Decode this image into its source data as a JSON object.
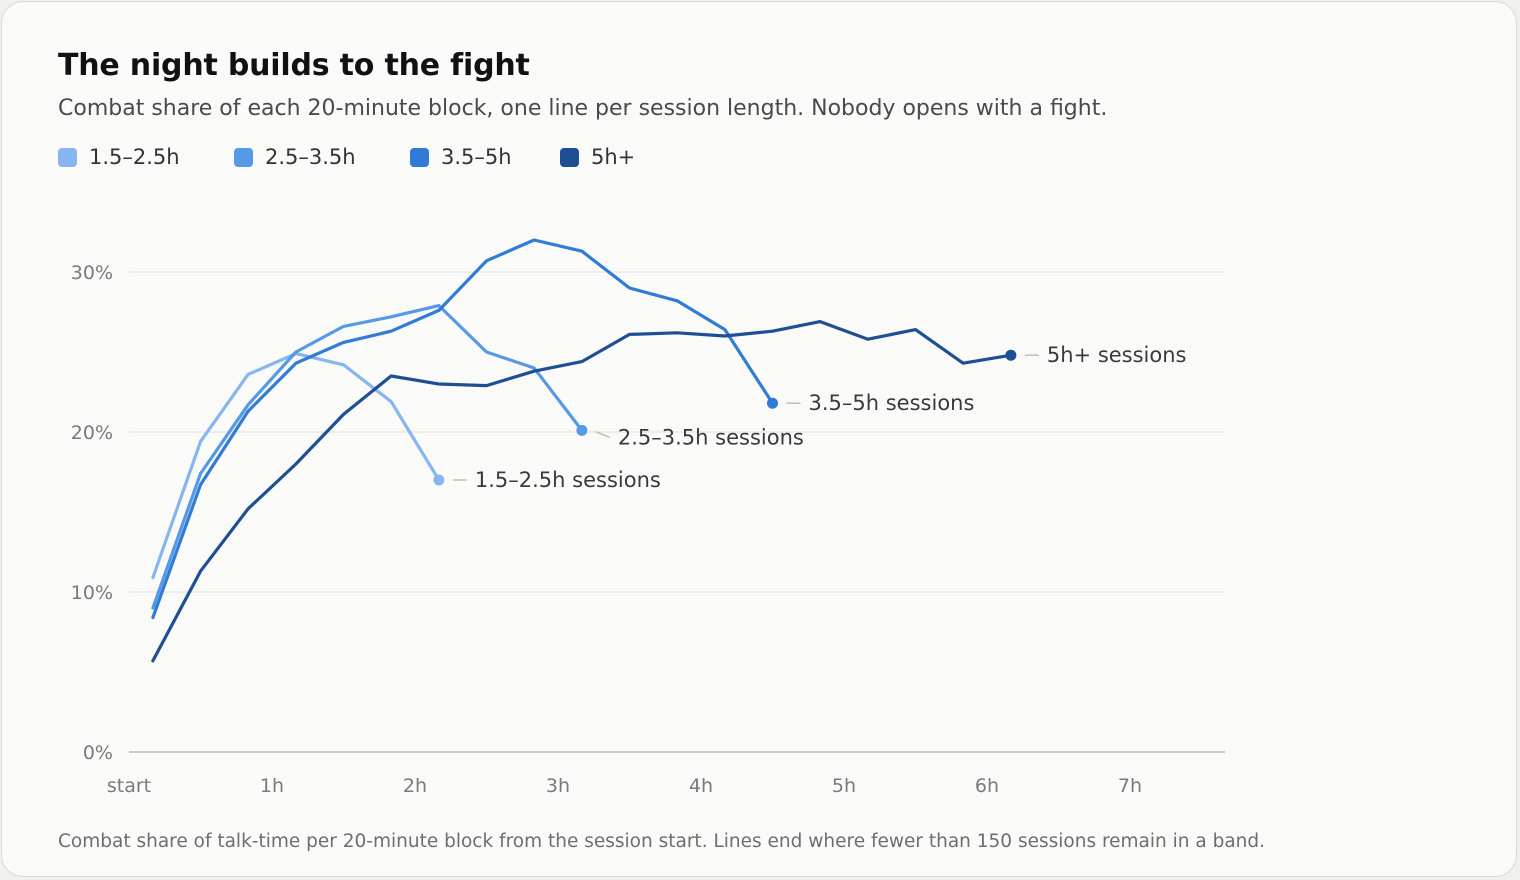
{
  "header": {
    "title": "The night builds to the fight",
    "subtitle": "Combat share of each 20-minute block, one line per session length. Nobody opens with a fight."
  },
  "footnote": "Combat share of talk-time per 20-minute block from the session start. Lines end where fewer than 150 sessions remain in a band.",
  "chart_data": {
    "type": "line",
    "title": "The night builds to the fight",
    "subtitle": "Combat share of each 20-minute block, one line per session length. Nobody opens with a fight.",
    "xlabel": "",
    "ylabel": "",
    "xlim": [
      0,
      7.65
    ],
    "ylim": [
      0,
      32
    ],
    "x_ticks": [
      {
        "value": 0,
        "label": "start"
      },
      {
        "value": 1,
        "label": "1h"
      },
      {
        "value": 2,
        "label": "2h"
      },
      {
        "value": 3,
        "label": "3h"
      },
      {
        "value": 4,
        "label": "4h"
      },
      {
        "value": 5,
        "label": "5h"
      },
      {
        "value": 6,
        "label": "6h"
      },
      {
        "value": 7,
        "label": "7h"
      }
    ],
    "y_ticks": [
      {
        "value": 0,
        "label": "0%"
      },
      {
        "value": 10,
        "label": "10%"
      },
      {
        "value": 20,
        "label": "20%"
      },
      {
        "value": 30,
        "label": "30%"
      }
    ],
    "grid": true,
    "legend": "top-left",
    "series": [
      {
        "name": "1.5–2.5h",
        "end_label": "1.5–2.5h sessions",
        "color": "#86b6ef",
        "x": [
          0.167,
          0.5,
          0.833,
          1.167,
          1.5,
          1.833,
          2.167
        ],
        "values": [
          10.9,
          19.4,
          23.6,
          24.9,
          24.2,
          21.9,
          17.0
        ]
      },
      {
        "name": "2.5–3.5h",
        "end_label": "2.5–3.5h sessions",
        "color": "#5699e6",
        "x": [
          0.167,
          0.5,
          0.833,
          1.167,
          1.5,
          1.833,
          2.167,
          2.5,
          2.833,
          3.167
        ],
        "values": [
          9.0,
          17.4,
          21.7,
          25.0,
          26.6,
          27.2,
          27.9,
          25.0,
          24.0,
          20.1
        ]
      },
      {
        "name": "3.5–5h",
        "end_label": "3.5–5h sessions",
        "color": "#2f7bd6",
        "x": [
          0.167,
          0.5,
          0.833,
          1.167,
          1.5,
          1.833,
          2.167,
          2.5,
          2.833,
          3.167,
          3.5,
          3.833,
          4.167,
          4.5
        ],
        "values": [
          8.4,
          16.7,
          21.3,
          24.3,
          25.6,
          26.3,
          27.6,
          30.7,
          32.0,
          31.3,
          29.0,
          28.2,
          26.4,
          21.8
        ]
      },
      {
        "name": "5h+",
        "end_label": "5h+ sessions",
        "color": "#1e4f94",
        "x": [
          0.167,
          0.5,
          0.833,
          1.167,
          1.5,
          1.833,
          2.167,
          2.5,
          2.833,
          3.167,
          3.5,
          3.833,
          4.167,
          4.5,
          4.833,
          5.167,
          5.5,
          5.833,
          6.167
        ],
        "values": [
          5.7,
          11.3,
          15.2,
          18.0,
          21.1,
          23.5,
          23.0,
          22.9,
          23.8,
          24.4,
          26.1,
          26.2,
          26.0,
          26.3,
          26.9,
          25.8,
          26.4,
          24.3,
          24.8
        ]
      }
    ]
  }
}
